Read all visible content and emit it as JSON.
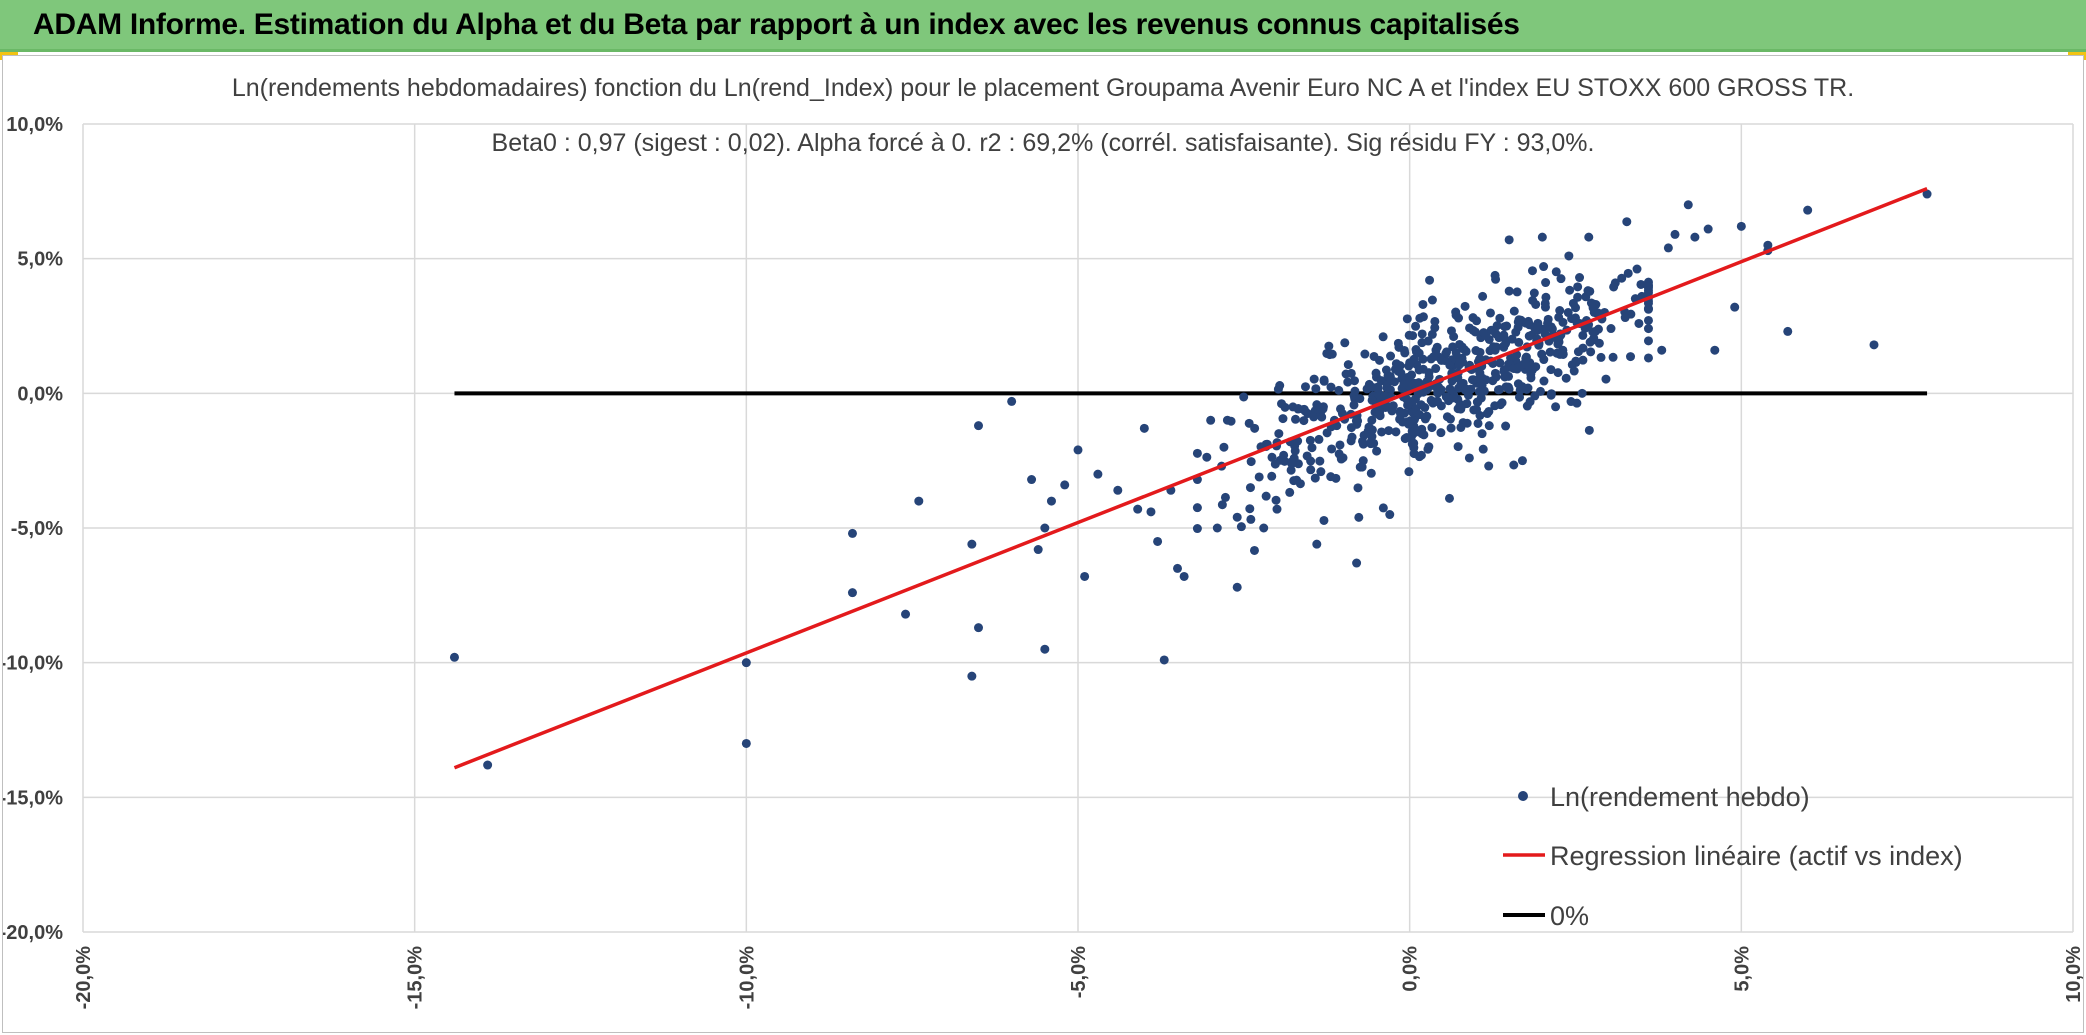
{
  "header": {
    "title": "ADAM Informe. Estimation du Alpha et du Beta par rapport à un index avec les revenus connus capitalisés",
    "background_color": "#7fc77b"
  },
  "chart_data": {
    "type": "scatter",
    "title": "Ln(rendements hebdomadaires) fonction du Ln(rend_Index) pour le placement Groupama Avenir Euro NC A et l'index EU STOXX 600 GROSS TR.",
    "subtitle": "Beta0 : 0,97 (sigest : 0,02). Alpha forcé à 0. r2 : 69,2% (corrél. satisfaisante). Sig résidu FY : 93,0%.",
    "xlabel": "",
    "ylabel": "",
    "xlim": [
      -20,
      10
    ],
    "ylim": [
      -20,
      10
    ],
    "grid": true,
    "legend_position": "bottom-right",
    "x_ticks": [
      "-20,0%",
      "-15,0%",
      "-10,0%",
      "-5,0%",
      "0,0%",
      "5,0%",
      "10,0%"
    ],
    "y_ticks": [
      "10,0%",
      "5,0%",
      "0,0%",
      "-5,0%",
      "-10,0%",
      "-15,0%",
      "-20,0%"
    ],
    "series": [
      {
        "name": "Ln(rendement hebdo)",
        "type": "scatter",
        "color": "#264478",
        "points": [
          [
            -14.4,
            -9.8
          ],
          [
            -13.9,
            -13.8
          ],
          [
            -10.0,
            -10.0
          ],
          [
            -10.0,
            -13.0
          ],
          [
            -8.4,
            -7.4
          ],
          [
            -8.4,
            -5.2
          ],
          [
            -7.6,
            -8.2
          ],
          [
            -7.4,
            -4.0
          ],
          [
            -6.6,
            -10.5
          ],
          [
            -6.5,
            -8.7
          ],
          [
            -6.5,
            -1.2
          ],
          [
            -6.0,
            -0.3
          ],
          [
            -6.6,
            -5.6
          ],
          [
            -5.6,
            -5.8
          ],
          [
            -5.5,
            -9.5
          ],
          [
            -5.5,
            -5.0
          ],
          [
            -5.2,
            -3.4
          ],
          [
            -5.0,
            -2.1
          ],
          [
            -4.9,
            -6.8
          ],
          [
            -4.7,
            -3.0
          ],
          [
            -4.4,
            -3.6
          ],
          [
            -4.1,
            -4.3
          ],
          [
            -4.0,
            -1.3
          ],
          [
            -3.8,
            -5.5
          ],
          [
            -3.7,
            -9.9
          ],
          [
            -3.5,
            -6.5
          ],
          [
            -3.4,
            -6.8
          ],
          [
            -3.2,
            -3.2
          ],
          [
            -3.0,
            -1.0
          ],
          [
            -2.6,
            -7.2
          ],
          [
            -2.6,
            -4.6
          ],
          [
            -2.4,
            -3.5
          ],
          [
            -2.0,
            -4.3
          ],
          [
            -1.9,
            -2.3
          ],
          [
            -1.4,
            -5.6
          ],
          [
            -1.3,
            -0.5
          ],
          [
            -0.8,
            -6.3
          ],
          [
            -0.7,
            -2.5
          ],
          [
            -0.3,
            -4.5
          ],
          [
            -0.2,
            1.1
          ],
          [
            -5.7,
            -3.2
          ],
          [
            -5.4,
            -4.0
          ],
          [
            -3.9,
            -4.4
          ],
          [
            -3.6,
            -3.6
          ],
          [
            -2.9,
            -5.0
          ],
          [
            -2.2,
            -5.0
          ],
          [
            -1.8,
            -1.8
          ],
          [
            -1.6,
            -0.6
          ],
          [
            -1.1,
            -1.2
          ],
          [
            -0.5,
            0.6
          ],
          [
            0.2,
            3.3
          ],
          [
            0.3,
            4.2
          ],
          [
            1.1,
            3.6
          ],
          [
            1.5,
            5.7
          ],
          [
            2.0,
            5.8
          ],
          [
            2.4,
            5.1
          ],
          [
            2.7,
            5.8
          ],
          [
            3.9,
            5.4
          ],
          [
            4.0,
            5.9
          ],
          [
            4.2,
            7.0
          ],
          [
            4.3,
            5.8
          ],
          [
            4.5,
            6.1
          ],
          [
            4.9,
            3.2
          ],
          [
            5.0,
            6.2
          ],
          [
            5.4,
            5.3
          ],
          [
            5.4,
            5.5
          ],
          [
            5.7,
            2.3
          ],
          [
            6.0,
            6.8
          ],
          [
            7.0,
            1.8
          ],
          [
            7.8,
            7.4
          ],
          [
            4.6,
            1.6
          ],
          [
            3.8,
            1.6
          ],
          [
            2.6,
            0.0
          ],
          [
            2.2,
            -0.5
          ],
          [
            1.7,
            -2.5
          ],
          [
            1.2,
            -1.2
          ],
          [
            0.6,
            -3.9
          ],
          [
            0.9,
            -2.4
          ],
          [
            2.8,
            2.3
          ],
          [
            3.5,
            3.6
          ],
          [
            1.9,
            3.3
          ],
          [
            1.2,
            2.0
          ],
          [
            0.7,
            2.9
          ],
          [
            -0.4,
            2.1
          ],
          [
            3.1,
            4.1
          ],
          [
            2.5,
            2.8
          ],
          [
            1.6,
            1.2
          ],
          [
            -2.8,
            -2.0
          ]
        ],
        "cluster": {
          "count": 620,
          "x_center": 0.5,
          "x_spread": 1.5,
          "slope": 0.97,
          "resid_sd": 1.25
        }
      },
      {
        "name": "Regression linéaire (actif vs index)",
        "type": "line",
        "color": "#e31a1c",
        "points": [
          [
            -14.4,
            -13.9
          ],
          [
            7.8,
            7.6
          ]
        ]
      },
      {
        "name": "0%",
        "type": "line",
        "color": "#000000",
        "points": [
          [
            -14.4,
            0.0
          ],
          [
            7.8,
            0.0
          ]
        ]
      }
    ]
  }
}
